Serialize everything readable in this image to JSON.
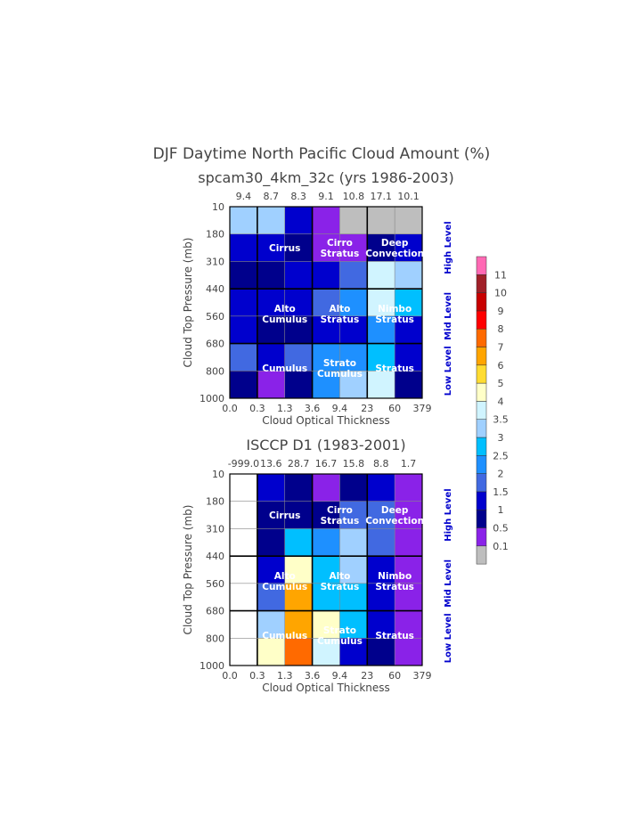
{
  "title": "DJF Daytime North Pacific Cloud Amount (%)",
  "chart_data": [
    {
      "type": "heatmap",
      "title": "spcam30_4km_32c (yrs 1986-2003)",
      "xlabel": "Cloud Optical Thickness",
      "ylabel": "Cloud Top Pressure (mb)",
      "x_edges": [
        "0.0",
        "0.3",
        "1.3",
        "3.6",
        "9.4",
        "23",
        "60",
        "379"
      ],
      "y_edges": [
        "10",
        "180",
        "310",
        "440",
        "560",
        "680",
        "800",
        "1000"
      ],
      "column_totals": [
        "9.4",
        "8.7",
        "8.3",
        "9.1",
        "10.8",
        "17.1",
        "10.1"
      ],
      "values": [
        [
          3.2,
          3.2,
          1.2,
          0.3,
          0.05,
          0.05,
          0.05
        ],
        [
          1.2,
          1.2,
          0.8,
          0.3,
          0.3,
          0.8,
          1.2
        ],
        [
          0.8,
          0.8,
          1.2,
          1.2,
          1.7,
          3.7,
          3.2
        ],
        [
          1.2,
          1.2,
          1.2,
          1.7,
          2.2,
          3.7,
          2.7
        ],
        [
          1.2,
          0.8,
          0.8,
          1.2,
          1.2,
          2.2,
          1.2
        ],
        [
          1.7,
          1.2,
          1.7,
          2.2,
          2.2,
          2.7,
          1.2
        ],
        [
          0.8,
          0.3,
          0.8,
          2.2,
          3.2,
          3.7,
          0.8
        ]
      ],
      "annotations": [
        "Cirrus",
        "Cirro Stratus",
        "Deep Convection",
        "Alto Cumulus",
        "Alto Stratus",
        "Nimbo Stratus",
        "Cumulus",
        "Strato Cumulus",
        "Stratus"
      ],
      "levels": [
        "High Level",
        "Mid Level",
        "Low Level"
      ]
    },
    {
      "type": "heatmap",
      "title": "ISCCP D1 (1983-2001)",
      "xlabel": "Cloud Optical Thickness",
      "ylabel": "Cloud Top Pressure (mb)",
      "x_edges": [
        "0.0",
        "0.3",
        "1.3",
        "3.6",
        "9.4",
        "23",
        "60",
        "379"
      ],
      "y_edges": [
        "10",
        "180",
        "310",
        "440",
        "560",
        "680",
        "800",
        "1000"
      ],
      "column_totals": [
        "-999.0",
        "13.6",
        "28.7",
        "16.7",
        "15.8",
        "8.8",
        "1.7"
      ],
      "values": [
        [
          null,
          1.2,
          0.8,
          0.3,
          0.8,
          1.2,
          0.3
        ],
        [
          null,
          0.8,
          0.8,
          0.8,
          1.7,
          1.7,
          0.3
        ],
        [
          null,
          0.8,
          2.7,
          2.2,
          3.2,
          1.7,
          0.3
        ],
        [
          null,
          1.2,
          4.5,
          2.7,
          3.2,
          1.2,
          0.3
        ],
        [
          null,
          1.7,
          6.5,
          2.7,
          2.7,
          1.2,
          0.3
        ],
        [
          null,
          3.2,
          6.5,
          4.5,
          2.7,
          1.2,
          0.3
        ],
        [
          null,
          4.5,
          7.5,
          3.7,
          1.2,
          0.8,
          0.3
        ]
      ],
      "annotations": [
        "Cirrus",
        "Cirro Stratus",
        "Deep Convection",
        "Alto Cumulus",
        "Alto Stratus",
        "Nimbo Stratus",
        "Cumulus",
        "Strato Cumulus",
        "Stratus"
      ],
      "levels": [
        "High Level",
        "Mid Level",
        "Low Level"
      ]
    }
  ],
  "colorbar": {
    "labels": [
      "0.1",
      "0.5",
      "1",
      "1.5",
      "2",
      "2.5",
      "3",
      "3.5",
      "4",
      "5",
      "6",
      "7",
      "8",
      "9",
      "10",
      "11"
    ],
    "thresholds": [
      0.1,
      0.5,
      1,
      1.5,
      2,
      2.5,
      3,
      3.5,
      4,
      5,
      6,
      7,
      8,
      9,
      10,
      11
    ],
    "colors": [
      "#bebebe",
      "#8a22e8",
      "#00008c",
      "#0000cd",
      "#4169e1",
      "#1e90ff",
      "#00bfff",
      "#a0d0ff",
      "#d0f4ff",
      "#ffffc8",
      "#ffdc32",
      "#ffa500",
      "#ff6a00",
      "#ff0000",
      "#c80000",
      "#a02028",
      "#ff69b4"
    ]
  }
}
